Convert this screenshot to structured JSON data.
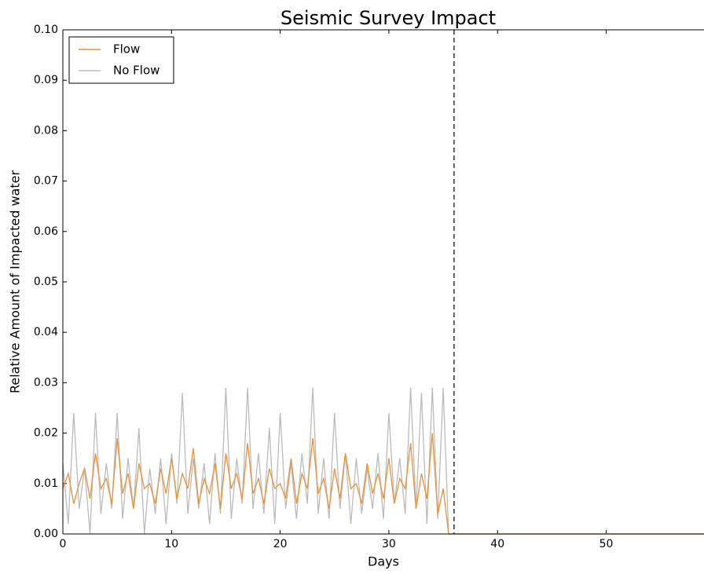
{
  "chart_data": {
    "type": "line",
    "title": "Seismic Survey Impact",
    "x_label": "Days",
    "y_label": "Relative Amount of Impacted water",
    "x": [
      0,
      0.5,
      1,
      1.5,
      2,
      2.5,
      3,
      3.5,
      4,
      4.5,
      5,
      5.5,
      6,
      6.5,
      7,
      7.5,
      8,
      8.5,
      9,
      9.5,
      10,
      10.5,
      11,
      11.5,
      12,
      12.5,
      13,
      13.5,
      14,
      14.5,
      15,
      15.5,
      16,
      16.5,
      17,
      17.5,
      18,
      18.5,
      19,
      19.5,
      20,
      20.5,
      21,
      21.5,
      22,
      22.5,
      23,
      23.5,
      24,
      24.5,
      25,
      25.5,
      26,
      26.5,
      27,
      27.5,
      28,
      28.5,
      29,
      29.5,
      30,
      30.5,
      31,
      31.5,
      32,
      32.5,
      33,
      33.5,
      34,
      34.5,
      35,
      35.5,
      59
    ],
    "series": [
      {
        "name": "Flow",
        "color": "#e8913a",
        "values": [
          0.009,
          0.012,
          0.006,
          0.01,
          0.013,
          0.007,
          0.016,
          0.009,
          0.011,
          0.006,
          0.019,
          0.008,
          0.012,
          0.005,
          0.014,
          0.009,
          0.01,
          0.006,
          0.013,
          0.008,
          0.015,
          0.007,
          0.012,
          0.009,
          0.017,
          0.006,
          0.011,
          0.008,
          0.014,
          0.005,
          0.016,
          0.009,
          0.012,
          0.007,
          0.018,
          0.008,
          0.011,
          0.006,
          0.013,
          0.009,
          0.01,
          0.007,
          0.015,
          0.006,
          0.012,
          0.009,
          0.019,
          0.008,
          0.011,
          0.005,
          0.013,
          0.007,
          0.016,
          0.009,
          0.01,
          0.006,
          0.014,
          0.008,
          0.012,
          0.007,
          0.015,
          0.006,
          0.011,
          0.009,
          0.018,
          0.005,
          0.012,
          0.007,
          0.02,
          0.004,
          0.009,
          0,
          0
        ]
      },
      {
        "name": "No Flow",
        "color": "#bbbbbb",
        "values": [
          0.014,
          0.002,
          0.024,
          0.005,
          0.013,
          0,
          0.024,
          0.004,
          0.014,
          0.005,
          0.024,
          0.003,
          0.015,
          0.005,
          0.021,
          0,
          0.013,
          0.004,
          0.015,
          0.002,
          0.016,
          0.006,
          0.028,
          0.004,
          0.015,
          0.005,
          0.014,
          0.002,
          0.016,
          0.004,
          0.029,
          0.003,
          0.015,
          0.006,
          0.029,
          0.005,
          0.016,
          0.004,
          0.021,
          0.002,
          0.024,
          0.005,
          0.014,
          0.003,
          0.016,
          0.006,
          0.029,
          0.004,
          0.015,
          0.003,
          0.024,
          0.005,
          0.016,
          0.002,
          0.015,
          0.004,
          0.013,
          0.005,
          0.016,
          0.003,
          0.024,
          0.006,
          0.015,
          0.004,
          0.029,
          0.005,
          0.028,
          0.002,
          0.029,
          0.003,
          0.029,
          0,
          0
        ]
      }
    ],
    "vline": 36,
    "xlim": [
      0,
      59
    ],
    "ylim": [
      0,
      0.1
    ],
    "xticks": [
      0,
      10,
      20,
      30,
      40,
      50
    ],
    "yticks": [
      {
        "value": 0,
        "label": "0.00"
      },
      {
        "value": 0.01,
        "label": "0.01"
      },
      {
        "value": 0.02,
        "label": "0.02"
      },
      {
        "value": 0.03,
        "label": "0.03"
      },
      {
        "value": 0.04,
        "label": "0.04"
      },
      {
        "value": 0.05,
        "label": "0.05"
      },
      {
        "value": 0.06,
        "label": "0.06"
      },
      {
        "value": 0.07,
        "label": "0.07"
      },
      {
        "value": 0.08,
        "label": "0.08"
      },
      {
        "value": 0.09,
        "label": "0.09"
      },
      {
        "value": 0.1,
        "label": "0.10"
      }
    ],
    "grid": false,
    "legend": "upper left"
  }
}
